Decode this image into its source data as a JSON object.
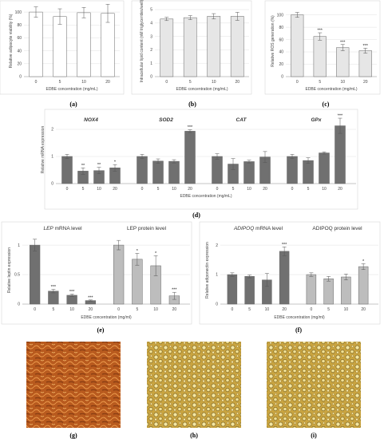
{
  "labels": {
    "a": "(a)",
    "b": "(b)",
    "c": "(c)",
    "d": "(d)",
    "e": "(e)",
    "f": "(f)",
    "g": "(g)",
    "h": "(h)",
    "i": "(i)"
  },
  "colors": {
    "bar_white": "#ffffff",
    "bar_light": "#e6e6e6",
    "bar_dark": "#707070",
    "bar_mid": "#bdbdbd",
    "gridline": "#d9d9d9",
    "micro_g": "#8a3a12",
    "micro_hi": "#d8b85a"
  },
  "chart_data": [
    {
      "id": "a",
      "type": "bar",
      "ylabel": "Relative adipocyte viability (%)",
      "xlabel": "EDBE concentration (mg/mL)",
      "categories": [
        "0",
        "5",
        "10",
        "20"
      ],
      "values": [
        100,
        93,
        99,
        98
      ],
      "errors": [
        8,
        12,
        8,
        14
      ],
      "yticks": [
        "0",
        "20",
        "40",
        "60",
        "80",
        "100"
      ],
      "ylim": [
        0,
        110
      ],
      "stars": [
        "",
        "",
        "",
        ""
      ]
    },
    {
      "id": "b",
      "type": "bar",
      "ylabel": "Intracellular lipid content (nM triglycerides/well)",
      "xlabel": "EDBE concentration (mg/mL)",
      "categories": [
        "0",
        "5",
        "10",
        "20"
      ],
      "values": [
        4.3,
        4.4,
        4.5,
        4.5
      ],
      "errors": [
        0.12,
        0.15,
        0.2,
        0.3
      ],
      "yticks": [
        "0",
        "1",
        "2",
        "3",
        "4",
        "5"
      ],
      "ylim": [
        0,
        5.3
      ],
      "stars": [
        "",
        "",
        "",
        ""
      ]
    },
    {
      "id": "c",
      "type": "bar",
      "ylabel": "Relative ROS generation (%)",
      "xlabel": "EDBE concentration (mg/mL)",
      "categories": [
        "0",
        "5",
        "10",
        "20"
      ],
      "values": [
        100,
        65,
        47,
        42
      ],
      "errors": [
        4,
        6,
        5,
        4
      ],
      "yticks": [
        "0",
        "20",
        "40",
        "60",
        "80",
        "100"
      ],
      "ylim": [
        0,
        115
      ],
      "stars": [
        "",
        "***",
        "***",
        "***"
      ]
    },
    {
      "id": "d",
      "type": "bar",
      "ylabel": "Relative mRNA expression",
      "xlabel": "EDBE concentration (mg/mL)",
      "yticks": [
        "0",
        "1",
        "2"
      ],
      "ylim": [
        0,
        2.5
      ],
      "groups": [
        {
          "name": "NOX4",
          "categories": [
            "0",
            "5",
            "10",
            "20"
          ],
          "values": [
            1.0,
            0.46,
            0.48,
            0.58
          ],
          "errors": [
            0.08,
            0.12,
            0.12,
            0.12
          ],
          "stars": [
            "",
            "**",
            "**",
            "*"
          ]
        },
        {
          "name": "SOD2",
          "categories": [
            "0",
            "5",
            "10",
            "20"
          ],
          "values": [
            1.0,
            0.83,
            0.82,
            1.93
          ],
          "errors": [
            0.08,
            0.08,
            0.06,
            0.05
          ],
          "stars": [
            "",
            "",
            "",
            "***"
          ]
        },
        {
          "name": "CAT",
          "categories": [
            "0",
            "5",
            "10",
            "20"
          ],
          "values": [
            1.0,
            0.72,
            0.81,
            0.98
          ],
          "errors": [
            0.1,
            0.2,
            0.05,
            0.2
          ],
          "stars": [
            "",
            "",
            "",
            ""
          ]
        },
        {
          "name": "GPx",
          "categories": [
            "0",
            "5",
            "10",
            "20"
          ],
          "values": [
            1.0,
            0.85,
            1.13,
            2.13
          ],
          "errors": [
            0.08,
            0.1,
            0.04,
            0.28
          ],
          "stars": [
            "",
            "",
            "",
            "***"
          ]
        }
      ]
    },
    {
      "id": "e",
      "type": "bar",
      "ylabel": "Relative leptin expression",
      "xlabel": "EDBE concentration (mg/ml)",
      "yticks": [
        "0",
        "0.5",
        "1"
      ],
      "ylim": [
        0,
        1.15
      ],
      "groups": [
        {
          "title_italic": "LEP",
          "title_rest": " mRNA level",
          "color": "dark",
          "categories": [
            "0",
            "5",
            "10",
            "20"
          ],
          "values": [
            1.0,
            0.22,
            0.15,
            0.06
          ],
          "errors": [
            0.1,
            0.03,
            0.02,
            0.01
          ],
          "stars": [
            "",
            "***",
            "***",
            "***"
          ]
        },
        {
          "title_italic": "",
          "title_rest": "LEP protein level",
          "color": "mid",
          "categories": [
            "0",
            "5",
            "10",
            "20"
          ],
          "values": [
            1.0,
            0.76,
            0.65,
            0.14
          ],
          "errors": [
            0.08,
            0.1,
            0.17,
            0.06
          ],
          "stars": [
            "",
            "*",
            "*",
            "***"
          ]
        }
      ]
    },
    {
      "id": "f",
      "type": "bar",
      "ylabel": "Relative adiponectin expression",
      "xlabel": "EDBE concentration (mg/ml)",
      "yticks": [
        "0",
        "1",
        "2"
      ],
      "ylim": [
        0,
        2.3
      ],
      "groups": [
        {
          "title_italic": "ADIPOQ",
          "title_rest": " mRNA level",
          "color": "dark",
          "categories": [
            "0",
            "5",
            "10",
            "20"
          ],
          "values": [
            1.0,
            0.94,
            0.82,
            1.79
          ],
          "errors": [
            0.06,
            0.05,
            0.22,
            0.15
          ],
          "stars": [
            "",
            "",
            "",
            "***"
          ]
        },
        {
          "title_italic": "",
          "title_rest": "ADIPOQ protein level",
          "color": "mid",
          "categories": [
            "0",
            "5",
            "10",
            "20"
          ],
          "values": [
            1.0,
            0.86,
            0.92,
            1.27
          ],
          "errors": [
            0.06,
            0.08,
            0.1,
            0.1
          ],
          "stars": [
            "",
            "",
            "",
            "*"
          ]
        }
      ]
    }
  ]
}
